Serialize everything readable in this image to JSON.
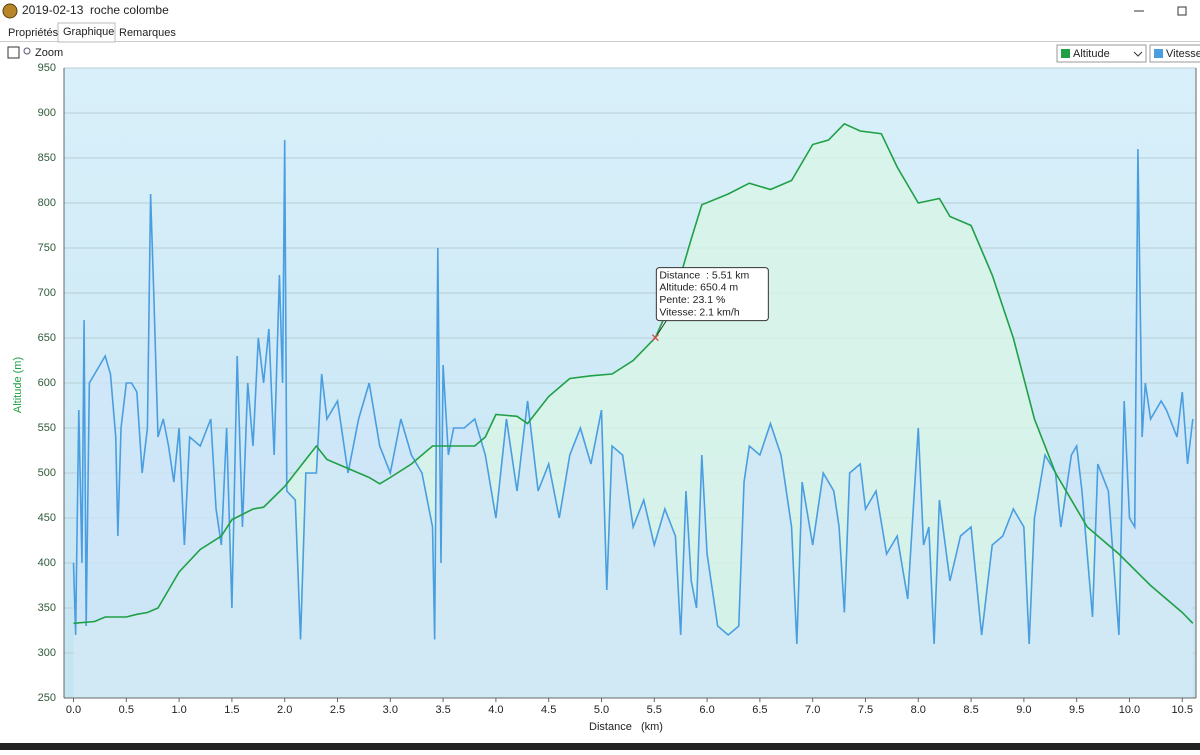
{
  "window": {
    "title": "2019-02-13  roche colombe"
  },
  "tabs": [
    "Propriétés",
    "Graphique",
    "Remarques"
  ],
  "toolbar": {
    "zoom": "Zoom"
  },
  "chart_data": {
    "type": "line",
    "xlabel": "Distance   (km)",
    "ylabel": "Altitude (m)",
    "xlim": [
      -0.09,
      10.63
    ],
    "ylim": [
      250,
      950
    ],
    "y2lim": [
      0,
      7
    ],
    "grid": true,
    "xticks": [
      {
        "value": 0,
        "label": "0.0"
      },
      0.5,
      {
        "value": 1,
        "label": "1.0"
      },
      1.5,
      {
        "value": 2,
        "label": "2.0"
      },
      2.5,
      {
        "value": 3,
        "label": "3.0"
      },
      3.5,
      {
        "value": 4,
        "label": "4.0"
      },
      4.5,
      {
        "value": 5,
        "label": "5.0"
      },
      5.5,
      {
        "value": 6,
        "label": "6.0"
      },
      6.5,
      {
        "value": 7,
        "label": "7.0"
      },
      7.5,
      {
        "value": 8,
        "label": "8.0"
      },
      8.5,
      {
        "value": 9,
        "label": "9.0"
      },
      9.5,
      {
        "value": 10,
        "label": "10.0"
      },
      10.5
    ],
    "yticks": [
      250,
      300,
      350,
      400,
      450,
      500,
      550,
      600,
      650,
      700,
      750,
      800,
      850,
      900,
      950
    ],
    "series": [
      {
        "name": "Altitude",
        "color": "#1fa045",
        "fill": "#d9f6e6",
        "x": [
          0,
          0.2,
          0.3,
          0.5,
          0.6,
          0.7,
          0.8,
          0.9,
          1.0,
          1.2,
          1.4,
          1.5,
          1.7,
          1.8,
          2.0,
          2.2,
          2.3,
          2.4,
          2.6,
          2.8,
          2.9,
          3.0,
          3.2,
          3.4,
          3.6,
          3.8,
          3.9,
          4.0,
          4.2,
          4.3,
          4.5,
          4.7,
          4.9,
          5.1,
          5.3,
          5.51,
          5.7,
          5.85,
          5.95,
          6.2,
          6.4,
          6.6,
          6.8,
          7.0,
          7.15,
          7.3,
          7.45,
          7.65,
          7.8,
          8.0,
          8.2,
          8.3,
          8.5,
          8.7,
          8.9,
          9.1,
          9.3,
          9.6,
          9.9,
          10.2,
          10.5,
          10.6
        ],
        "values": [
          333,
          335,
          340,
          340,
          343,
          345,
          350,
          370,
          390,
          415,
          430,
          448,
          460,
          462,
          485,
          515,
          530,
          515,
          505,
          495,
          488,
          495,
          510,
          530,
          530,
          530,
          540,
          565,
          563,
          555,
          585,
          605,
          608,
          610,
          625,
          650.4,
          700,
          760,
          798,
          810,
          822,
          815,
          825,
          865,
          870,
          888,
          880,
          877,
          840,
          800,
          805,
          785,
          775,
          720,
          650,
          560,
          500,
          440,
          410,
          375,
          345,
          333
        ]
      },
      {
        "name": "Vitesse",
        "color": "#4a9ee0",
        "fill": "#cfe6f8",
        "axis": "y2",
        "x": [
          0,
          0.02,
          0.05,
          0.08,
          0.1,
          0.12,
          0.15,
          0.2,
          0.25,
          0.3,
          0.35,
          0.4,
          0.42,
          0.45,
          0.5,
          0.55,
          0.6,
          0.65,
          0.7,
          0.73,
          0.76,
          0.8,
          0.85,
          0.9,
          0.95,
          1.0,
          1.05,
          1.1,
          1.2,
          1.3,
          1.35,
          1.4,
          1.45,
          1.5,
          1.55,
          1.6,
          1.65,
          1.7,
          1.75,
          1.8,
          1.85,
          1.9,
          1.95,
          1.98,
          2.0,
          2.02,
          2.1,
          2.15,
          2.2,
          2.3,
          2.35,
          2.4,
          2.5,
          2.6,
          2.7,
          2.8,
          2.9,
          3.0,
          3.1,
          3.2,
          3.3,
          3.4,
          3.42,
          3.45,
          3.48,
          3.5,
          3.55,
          3.6,
          3.7,
          3.8,
          3.9,
          4.0,
          4.1,
          4.2,
          4.3,
          4.4,
          4.5,
          4.6,
          4.7,
          4.8,
          4.9,
          5.0,
          5.05,
          5.1,
          5.2,
          5.3,
          5.4,
          5.5,
          5.6,
          5.7,
          5.75,
          5.8,
          5.85,
          5.9,
          5.95,
          6.0,
          6.1,
          6.2,
          6.3,
          6.35,
          6.4,
          6.5,
          6.6,
          6.7,
          6.8,
          6.85,
          6.9,
          7.0,
          7.1,
          7.2,
          7.25,
          7.3,
          7.35,
          7.45,
          7.5,
          7.6,
          7.7,
          7.8,
          7.9,
          8.0,
          8.05,
          8.1,
          8.15,
          8.2,
          8.3,
          8.4,
          8.5,
          8.6,
          8.7,
          8.8,
          8.9,
          9.0,
          9.05,
          9.1,
          9.2,
          9.3,
          9.35,
          9.45,
          9.5,
          9.55,
          9.65,
          9.7,
          9.8,
          9.9,
          9.95,
          10.0,
          10.05,
          10.08,
          10.12,
          10.15,
          10.2,
          10.3,
          10.35,
          10.45,
          10.5,
          10.55,
          10.6
        ],
        "values": [
          1.5,
          0.7,
          3.2,
          1.5,
          4.2,
          0.8,
          3.5,
          3.6,
          3.7,
          3.8,
          3.6,
          2.9,
          1.8,
          3.0,
          3.5,
          3.5,
          3.4,
          2.5,
          3.0,
          5.6,
          4.5,
          2.9,
          3.1,
          2.8,
          2.4,
          3.0,
          1.7,
          2.9,
          2.8,
          3.1,
          2.1,
          1.7,
          3.0,
          1.0,
          3.8,
          1.9,
          3.5,
          2.8,
          4.0,
          3.5,
          4.1,
          2.7,
          4.7,
          3.5,
          6.2,
          2.3,
          2.2,
          0.65,
          2.5,
          2.5,
          3.6,
          3.1,
          3.3,
          2.5,
          3.1,
          3.5,
          2.8,
          2.5,
          3.1,
          2.7,
          2.5,
          1.9,
          0.65,
          5.0,
          1.5,
          3.7,
          2.7,
          3.0,
          3.0,
          3.1,
          2.7,
          2.0,
          3.1,
          2.3,
          3.3,
          2.3,
          2.6,
          2.0,
          2.7,
          3.0,
          2.6,
          3.2,
          1.2,
          2.8,
          2.7,
          1.9,
          2.2,
          1.7,
          2.1,
          1.8,
          0.7,
          2.3,
          1.3,
          1.0,
          2.7,
          1.6,
          0.8,
          0.7,
          0.8,
          2.4,
          2.8,
          2.7,
          3.05,
          2.7,
          1.9,
          0.6,
          2.4,
          1.7,
          2.5,
          2.3,
          1.9,
          0.95,
          2.5,
          2.6,
          2.1,
          2.3,
          1.6,
          1.8,
          1.1,
          3.0,
          1.7,
          1.9,
          0.6,
          2.2,
          1.3,
          1.8,
          1.9,
          0.7,
          1.7,
          1.8,
          2.1,
          1.9,
          0.6,
          2.0,
          2.7,
          2.5,
          1.9,
          2.7,
          2.8,
          2.3,
          0.9,
          2.6,
          2.3,
          0.7,
          3.3,
          2.0,
          1.9,
          6.1,
          2.9,
          3.5,
          3.1,
          3.3,
          3.2,
          2.9,
          3.4,
          2.6,
          3.1
        ]
      }
    ]
  },
  "tooltip": {
    "x": 5.51,
    "y": 650.4,
    "lines": [
      "Distance  : 5.51 km",
      "Altitude: 650.4 m",
      "Pente: 23.1 %",
      "Vitesse: 2.1 km/h"
    ]
  }
}
